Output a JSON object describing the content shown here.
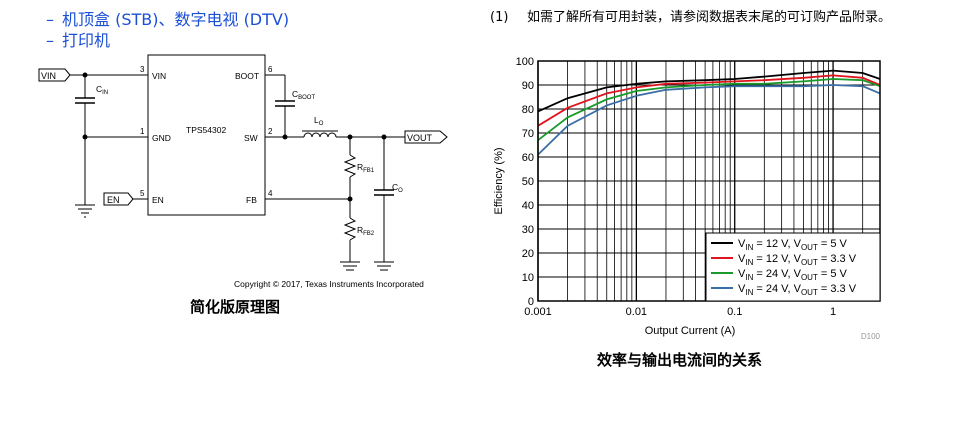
{
  "bullets": [
    {
      "dash": "–",
      "text": "机顶盒 (STB)、数字电视 (DTV)"
    },
    {
      "dash": "–",
      "text": "打印机"
    }
  ],
  "note": {
    "number": "(1)",
    "text": "如需了解所有可用封装，请参阅数据表末尾的可订购产品附录。"
  },
  "schematic": {
    "caption": "简化版原理图",
    "copyright": "Copyright © 2017, Texas Instruments Incorporated",
    "ic_name": "TPS54302",
    "pins": {
      "vin": "VIN",
      "vin_num": "3",
      "gnd": "GND",
      "gnd_num": "1",
      "en": "EN",
      "en_num": "5",
      "boot": "BOOT",
      "boot_num": "6",
      "sw": "SW",
      "sw_num": "2",
      "fb": "FB",
      "fb_num": "4"
    },
    "ports": {
      "vin": "VIN",
      "en": "EN",
      "vout": "VOUT"
    },
    "components": {
      "cin": "C",
      "cin_sub": "IN",
      "cboot": "C",
      "cboot_sub": "BOOT",
      "lo": "L",
      "lo_sub": "O",
      "rfb1": "R",
      "rfb1_sub": "FB1",
      "rfb2": "R",
      "rfb2_sub": "FB2",
      "co": "C",
      "co_sub": "O"
    }
  },
  "chart_caption": "效率与输出电流间的关系",
  "chart_data": {
    "type": "line",
    "xlabel": "Output Current (A)",
    "ylabel": "Efficiency (%)",
    "x_scale": "log",
    "xlim": [
      0.001,
      3
    ],
    "ylim": [
      0,
      100
    ],
    "x_ticks": [
      0.001,
      0.01,
      0.1,
      1
    ],
    "x_tick_labels": [
      "0.001",
      "0.01",
      "0.1",
      "1"
    ],
    "y_ticks": [
      0,
      10,
      20,
      30,
      40,
      50,
      60,
      70,
      80,
      90,
      100
    ],
    "grid": true,
    "legend_position": "bottom-right",
    "figure_id": "D100",
    "series": [
      {
        "name": "V_IN = 12 V, V_OUT = 5 V",
        "color": "#000000",
        "x": [
          0.001,
          0.002,
          0.005,
          0.01,
          0.02,
          0.05,
          0.1,
          0.2,
          0.5,
          1,
          2,
          3
        ],
        "y": [
          79,
          84.5,
          89,
          90.5,
          91.5,
          92,
          92.5,
          93.5,
          95,
          96,
          95,
          92.5
        ]
      },
      {
        "name": "V_IN = 12 V, V_OUT = 3.3 V",
        "color": "#e0141e",
        "x": [
          0.001,
          0.002,
          0.005,
          0.01,
          0.02,
          0.05,
          0.1,
          0.2,
          0.5,
          1,
          2,
          3
        ],
        "y": [
          73,
          80.5,
          86.5,
          89,
          90.5,
          91,
          91.5,
          92,
          93,
          94,
          93,
          90
        ]
      },
      {
        "name": "V_IN = 24 V, V_OUT = 5 V",
        "color": "#1a9a2a",
        "x": [
          0.001,
          0.002,
          0.005,
          0.01,
          0.02,
          0.05,
          0.1,
          0.2,
          0.5,
          1,
          2,
          3
        ],
        "y": [
          67,
          76.5,
          84,
          87.5,
          89,
          90,
          90.5,
          90.5,
          91.5,
          92.5,
          92,
          89.5
        ]
      },
      {
        "name": "V_IN = 24 V, V_OUT = 3.3 V",
        "color": "#3a6ea5",
        "x": [
          0.001,
          0.002,
          0.005,
          0.01,
          0.02,
          0.05,
          0.1,
          0.2,
          0.5,
          1,
          2,
          3
        ],
        "y": [
          61,
          73,
          81.5,
          85.5,
          88,
          89,
          89.5,
          89.5,
          89.5,
          90,
          89.5,
          86.5
        ]
      }
    ],
    "legend_entries": [
      {
        "vin": "12 V",
        "vout": "5 V",
        "color": "#000000"
      },
      {
        "vin": "12 V",
        "vout": "3.3 V",
        "color": "#e0141e"
      },
      {
        "vin": "24 V",
        "vout": "5 V",
        "color": "#1a9a2a"
      },
      {
        "vin": "24 V",
        "vout": "3.3 V",
        "color": "#3a6ea5"
      }
    ]
  }
}
